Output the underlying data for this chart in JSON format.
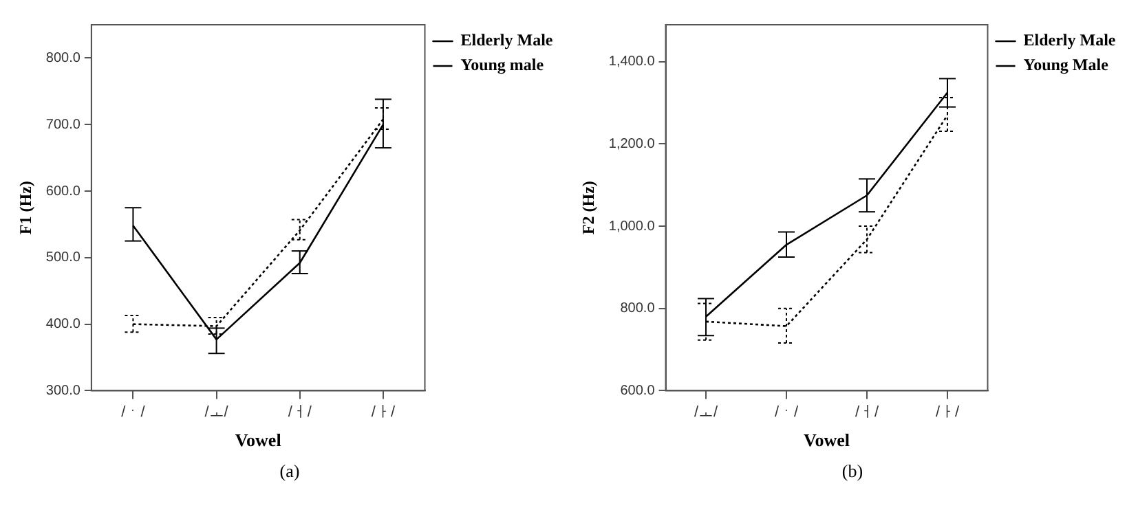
{
  "chart_data": [
    {
      "type": "line",
      "ylabel": "F1 (Hz)",
      "xlabel": "Vowel",
      "categories": [
        "/ㆍ/",
        "/ㅗ/",
        "/ㅓ/",
        "/ㅏ/"
      ],
      "ylim": [
        300,
        850
      ],
      "yticks": [
        {
          "value": 300,
          "label": "300.0"
        },
        {
          "value": 400,
          "label": "400.0"
        },
        {
          "value": 500,
          "label": "500.0"
        },
        {
          "value": 600,
          "label": "600.0"
        },
        {
          "value": 700,
          "label": "700.0"
        },
        {
          "value": 800,
          "label": "800.0"
        }
      ],
      "grid": false,
      "legend": "top right",
      "marker": "none",
      "annotations": [
        "(a)"
      ],
      "series": [
        {
          "name": "Elderly Male",
          "color": "#000000",
          "line_style": "solid",
          "values": [
            548,
            377,
            492,
            700
          ],
          "errors": [
            [
              525,
              575
            ],
            [
              356,
              394
            ],
            [
              476,
              510
            ],
            [
              665,
              738
            ]
          ]
        },
        {
          "name": "Young male",
          "color": "#000000",
          "line_style": "dotted",
          "values": [
            400,
            397,
            541,
            708
          ],
          "errors": [
            [
              388,
              413
            ],
            [
              385,
              410
            ],
            [
              527,
              557
            ],
            [
              693,
              725
            ]
          ]
        }
      ]
    },
    {
      "type": "line",
      "ylabel": "F2 (Hz)",
      "xlabel": "Vowel",
      "categories": [
        "/ㅗ/",
        "/ㆍ/",
        "/ㅓ/",
        "/ㅏ/"
      ],
      "ylim": [
        600,
        1490
      ],
      "yticks": [
        {
          "value": 600,
          "label": "600.0"
        },
        {
          "value": 800,
          "label": "800.0"
        },
        {
          "value": 1000,
          "label": "1,000.0"
        },
        {
          "value": 1200,
          "label": "1,200.0"
        },
        {
          "value": 1400,
          "label": "1,400.0"
        }
      ],
      "grid": false,
      "legend": "top right",
      "marker": "none",
      "annotations": [
        "(b)"
      ],
      "series": [
        {
          "name": "Elderly Male",
          "color": "#000000",
          "line_style": "solid",
          "values": [
            780,
            955,
            1075,
            1325
          ],
          "errors": [
            [
              734,
              824
            ],
            [
              925,
              986
            ],
            [
              1035,
              1115
            ],
            [
              1290,
              1359
            ]
          ]
        },
        {
          "name": "Young Male",
          "color": "#000000",
          "line_style": "dotted",
          "values": [
            768,
            757,
            968,
            1270
          ],
          "errors": [
            [
              723,
              812
            ],
            [
              716,
              800
            ],
            [
              936,
              1000
            ],
            [
              1231,
              1313
            ]
          ]
        }
      ]
    }
  ]
}
